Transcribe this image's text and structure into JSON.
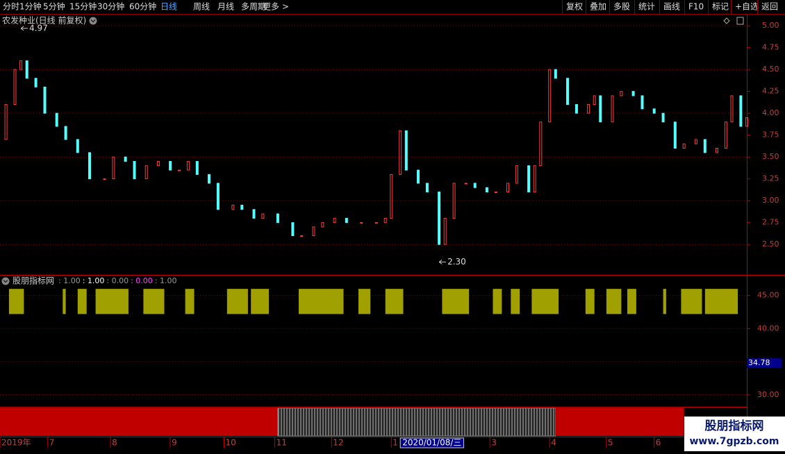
{
  "toolbar": {
    "left": [
      "分时",
      "1分钟",
      "5分钟",
      "15分钟",
      "30分钟",
      "60分钟",
      "日线",
      "周线",
      "月线",
      "多周期",
      "更多 >"
    ],
    "active": "日线",
    "right": [
      "复权",
      "叠加",
      "多股",
      "统计",
      "画线",
      "F10",
      "标记",
      "+自选",
      "返回"
    ]
  },
  "chart_data": [
    {
      "type": "candlestick",
      "title": "农发种业(日线 前复权)",
      "x": [
        0,
        2,
        5,
        7,
        9,
        12,
        15,
        19,
        22,
        26,
        30,
        35,
        38,
        42,
        45,
        49,
        53,
        57,
        60,
        63,
        66,
        70,
        73,
        78,
        81,
        85,
        88,
        93,
        98,
        101,
        105,
        108,
        112,
        116,
        121,
        126,
        129,
        131,
        134,
        136,
        140,
        143,
        147,
        149,
        152,
        156,
        159,
        163,
        166,
        170,
        173,
        177,
        179,
        181,
        184,
        186,
        190,
        193,
        197,
        199,
        201,
        205,
        208,
        212,
        215,
        219,
        222,
        226,
        229,
        233,
        236,
        240,
        243,
        245,
        248,
        250
      ],
      "close": [
        3.7,
        4.1,
        4.5,
        4.6,
        4.4,
        4.3,
        4.0,
        3.85,
        3.7,
        3.55,
        3.25,
        3.25,
        3.5,
        3.45,
        3.25,
        3.4,
        3.45,
        3.35,
        3.35,
        3.45,
        3.3,
        3.2,
        2.9,
        2.95,
        2.9,
        2.8,
        2.85,
        2.75,
        2.6,
        2.6,
        2.7,
        2.75,
        2.8,
        2.75,
        2.75,
        2.75,
        2.8,
        3.3,
        3.8,
        3.35,
        3.2,
        3.1,
        2.5,
        2.8,
        3.2,
        3.2,
        3.15,
        3.1,
        3.1,
        3.2,
        3.4,
        3.1,
        3.4,
        3.9,
        4.5,
        4.4,
        4.1,
        4.0,
        4.1,
        4.2,
        3.9,
        4.2,
        4.25,
        4.2,
        4.05,
        4.0,
        3.9,
        3.6,
        3.65,
        3.7,
        3.55,
        3.6,
        3.9,
        4.2,
        3.85,
        3.95
      ],
      "up_color": "#ff3c3c",
      "down_color": "#54ffff",
      "xlim": [
        0,
        250
      ],
      "ylim": [
        2.16,
        5.12
      ],
      "yticks": [
        {
          "value": 5.0,
          "label": "5.00"
        },
        {
          "value": 4.75,
          "label": "4.75"
        },
        {
          "value": 4.5,
          "label": "4.50"
        },
        {
          "value": 4.25,
          "label": "4.25"
        },
        {
          "value": 4.0,
          "label": "4.00"
        },
        {
          "value": 3.75,
          "label": "3.75"
        },
        {
          "value": 3.5,
          "label": "3.50"
        },
        {
          "value": 3.25,
          "label": "3.25"
        },
        {
          "value": 3.0,
          "label": "3.00"
        },
        {
          "value": 2.75,
          "label": "2.75"
        },
        {
          "value": 2.5,
          "label": "2.50"
        }
      ],
      "annotations": [
        {
          "x": 7,
          "value": 4.97,
          "label": "4.97"
        },
        {
          "x": 147,
          "value": 2.3,
          "label": "2.30"
        }
      ]
    },
    {
      "type": "blocks",
      "title": "股朋指标网",
      "readouts": [
        ": 1.00",
        ": 1.00",
        ": 0.00",
        ": 0.00",
        ": 1.00"
      ],
      "readout_colors": [
        "#999999",
        "#ffffff",
        "#999999",
        "#ff44ff",
        "#999999"
      ],
      "color": "#a0a000",
      "block_top": 46.0,
      "block_bottom": 42.2,
      "blocks": [
        [
          3,
          8
        ],
        [
          21,
          22
        ],
        [
          26,
          29
        ],
        [
          32,
          43
        ],
        [
          48,
          55
        ],
        [
          62,
          65
        ],
        [
          76,
          83
        ],
        [
          84,
          90
        ],
        [
          100,
          115
        ],
        [
          120,
          124
        ],
        [
          129,
          135
        ],
        [
          148,
          157
        ],
        [
          165,
          168
        ],
        [
          171,
          174
        ],
        [
          178,
          187
        ],
        [
          196,
          199
        ],
        [
          203,
          208
        ],
        [
          210,
          213
        ],
        [
          222,
          223
        ],
        [
          228,
          235
        ],
        [
          236,
          247
        ]
      ],
      "xlim": [
        0,
        250
      ],
      "ylim": [
        28.3,
        47.9
      ],
      "yticks": [
        {
          "value": 45,
          "label": "45.00"
        },
        {
          "value": 40,
          "label": "40.00"
        },
        {
          "value": 35,
          "label": "35.00"
        },
        {
          "value": 30,
          "label": "30.00"
        }
      ],
      "current": {
        "value": 34.78,
        "label": "34.78"
      }
    }
  ],
  "bands": [
    {
      "start": 0,
      "end": 93,
      "style": "solid"
    },
    {
      "start": 93,
      "end": 186,
      "style": "hatched"
    },
    {
      "start": 186,
      "end": 229,
      "style": "solid"
    }
  ],
  "date_axis": [
    {
      "value": 0,
      "label": "2019年"
    },
    {
      "value": 16,
      "label": "7"
    },
    {
      "value": 37,
      "label": "8"
    },
    {
      "value": 57,
      "label": "9"
    },
    {
      "value": 75,
      "label": "10"
    },
    {
      "value": 92,
      "label": "11"
    },
    {
      "value": 111,
      "label": "12"
    },
    {
      "value": 131,
      "label": "1"
    },
    {
      "value": 164,
      "label": "3"
    },
    {
      "value": 184,
      "label": "4"
    },
    {
      "value": 203,
      "label": "5"
    },
    {
      "value": 219,
      "label": "6"
    }
  ],
  "cursor_date": {
    "value": 134,
    "label": "2020/01/08/三"
  },
  "watermark": {
    "name": "股朋指标网",
    "url": "www.7gpzb.com"
  }
}
